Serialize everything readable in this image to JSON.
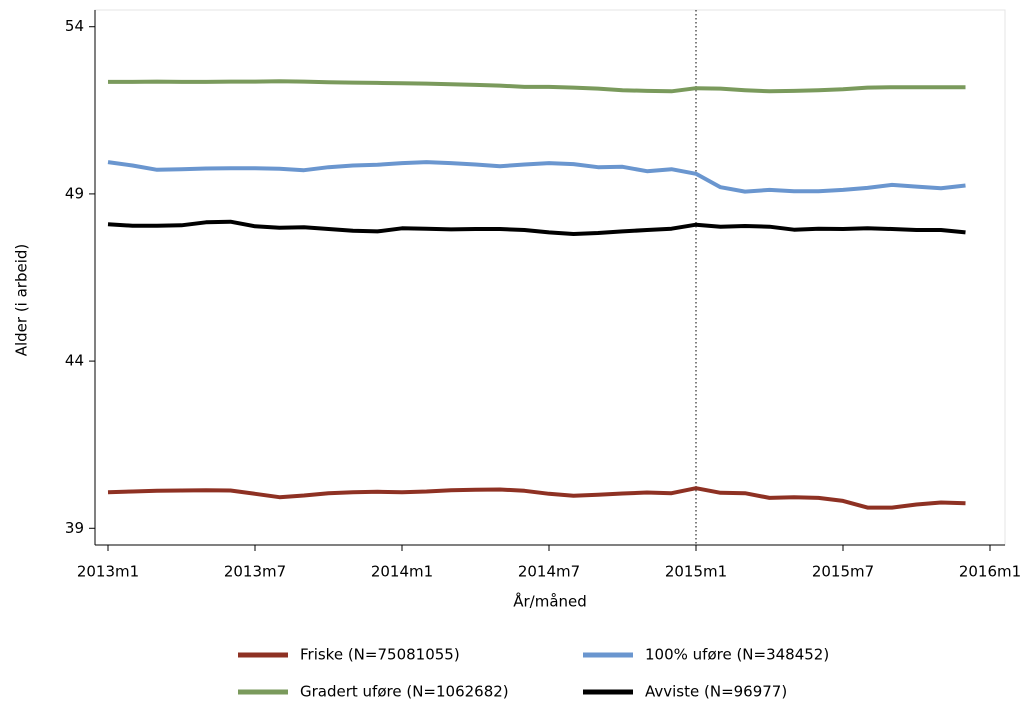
{
  "chart_data": {
    "type": "line",
    "xlabel": "År/måned",
    "ylabel": "Alder (i arbeid)",
    "x": [
      "2013m1",
      "2013m2",
      "2013m3",
      "2013m4",
      "2013m5",
      "2013m6",
      "2013m7",
      "2013m8",
      "2013m9",
      "2013m10",
      "2013m11",
      "2013m12",
      "2014m1",
      "2014m2",
      "2014m3",
      "2014m4",
      "2014m5",
      "2014m6",
      "2014m7",
      "2014m8",
      "2014m9",
      "2014m10",
      "2014m11",
      "2014m12",
      "2015m1",
      "2015m2",
      "2015m3",
      "2015m4",
      "2015m5",
      "2015m6",
      "2015m7",
      "2015m8",
      "2015m9",
      "2015m10",
      "2015m11",
      "2015m12"
    ],
    "xticks": [
      "2013m1",
      "2013m7",
      "2014m1",
      "2014m7",
      "2015m1",
      "2015m7",
      "2016m1"
    ],
    "vline": "2015m1",
    "ylim": [
      38.5,
      54.5
    ],
    "yticks": [
      39,
      44,
      49,
      54
    ],
    "series": [
      {
        "name": "Friske (N=75081055)",
        "color": "#8e3123",
        "values": [
          40.08,
          40.1,
          40.12,
          40.13,
          40.14,
          40.13,
          40.03,
          39.93,
          39.98,
          40.05,
          40.08,
          40.09,
          40.08,
          40.1,
          40.14,
          40.15,
          40.16,
          40.12,
          40.03,
          39.97,
          40.0,
          40.04,
          40.07,
          40.05,
          40.2,
          40.06,
          40.05,
          39.91,
          39.93,
          39.91,
          39.82,
          39.62,
          39.62,
          39.71,
          39.77,
          39.75
        ]
      },
      {
        "name": "100% uføre (N=348452)",
        "color": "#6a96cf",
        "values": [
          49.95,
          49.85,
          49.72,
          49.74,
          49.76,
          49.77,
          49.77,
          49.75,
          49.71,
          49.8,
          49.85,
          49.87,
          49.92,
          49.95,
          49.92,
          49.88,
          49.83,
          49.88,
          49.92,
          49.89,
          49.8,
          49.81,
          49.68,
          49.74,
          49.6,
          49.2,
          49.07,
          49.12,
          49.08,
          49.08,
          49.12,
          49.18,
          49.27,
          49.22,
          49.17,
          49.25
        ]
      },
      {
        "name": "Gradert uføre (N=1062682)",
        "color": "#7a9a5c",
        "values": [
          52.35,
          52.35,
          52.36,
          52.35,
          52.35,
          52.36,
          52.36,
          52.37,
          52.36,
          52.34,
          52.33,
          52.32,
          52.31,
          52.3,
          52.28,
          52.26,
          52.24,
          52.2,
          52.2,
          52.18,
          52.15,
          52.1,
          52.08,
          52.07,
          52.16,
          52.15,
          52.1,
          52.07,
          52.08,
          52.1,
          52.13,
          52.18,
          52.19,
          52.19,
          52.19,
          52.19
        ]
      },
      {
        "name": "Avviste (N=96977)",
        "color": "#000000",
        "values": [
          48.09,
          48.05,
          48.05,
          48.06,
          48.15,
          48.17,
          48.03,
          47.99,
          48.0,
          47.95,
          47.9,
          47.88,
          47.97,
          47.96,
          47.94,
          47.95,
          47.95,
          47.92,
          47.85,
          47.8,
          47.83,
          47.88,
          47.92,
          47.96,
          48.08,
          48.02,
          48.04,
          48.02,
          47.93,
          47.96,
          47.95,
          47.97,
          47.95,
          47.92,
          47.92,
          47.85
        ]
      }
    ]
  }
}
